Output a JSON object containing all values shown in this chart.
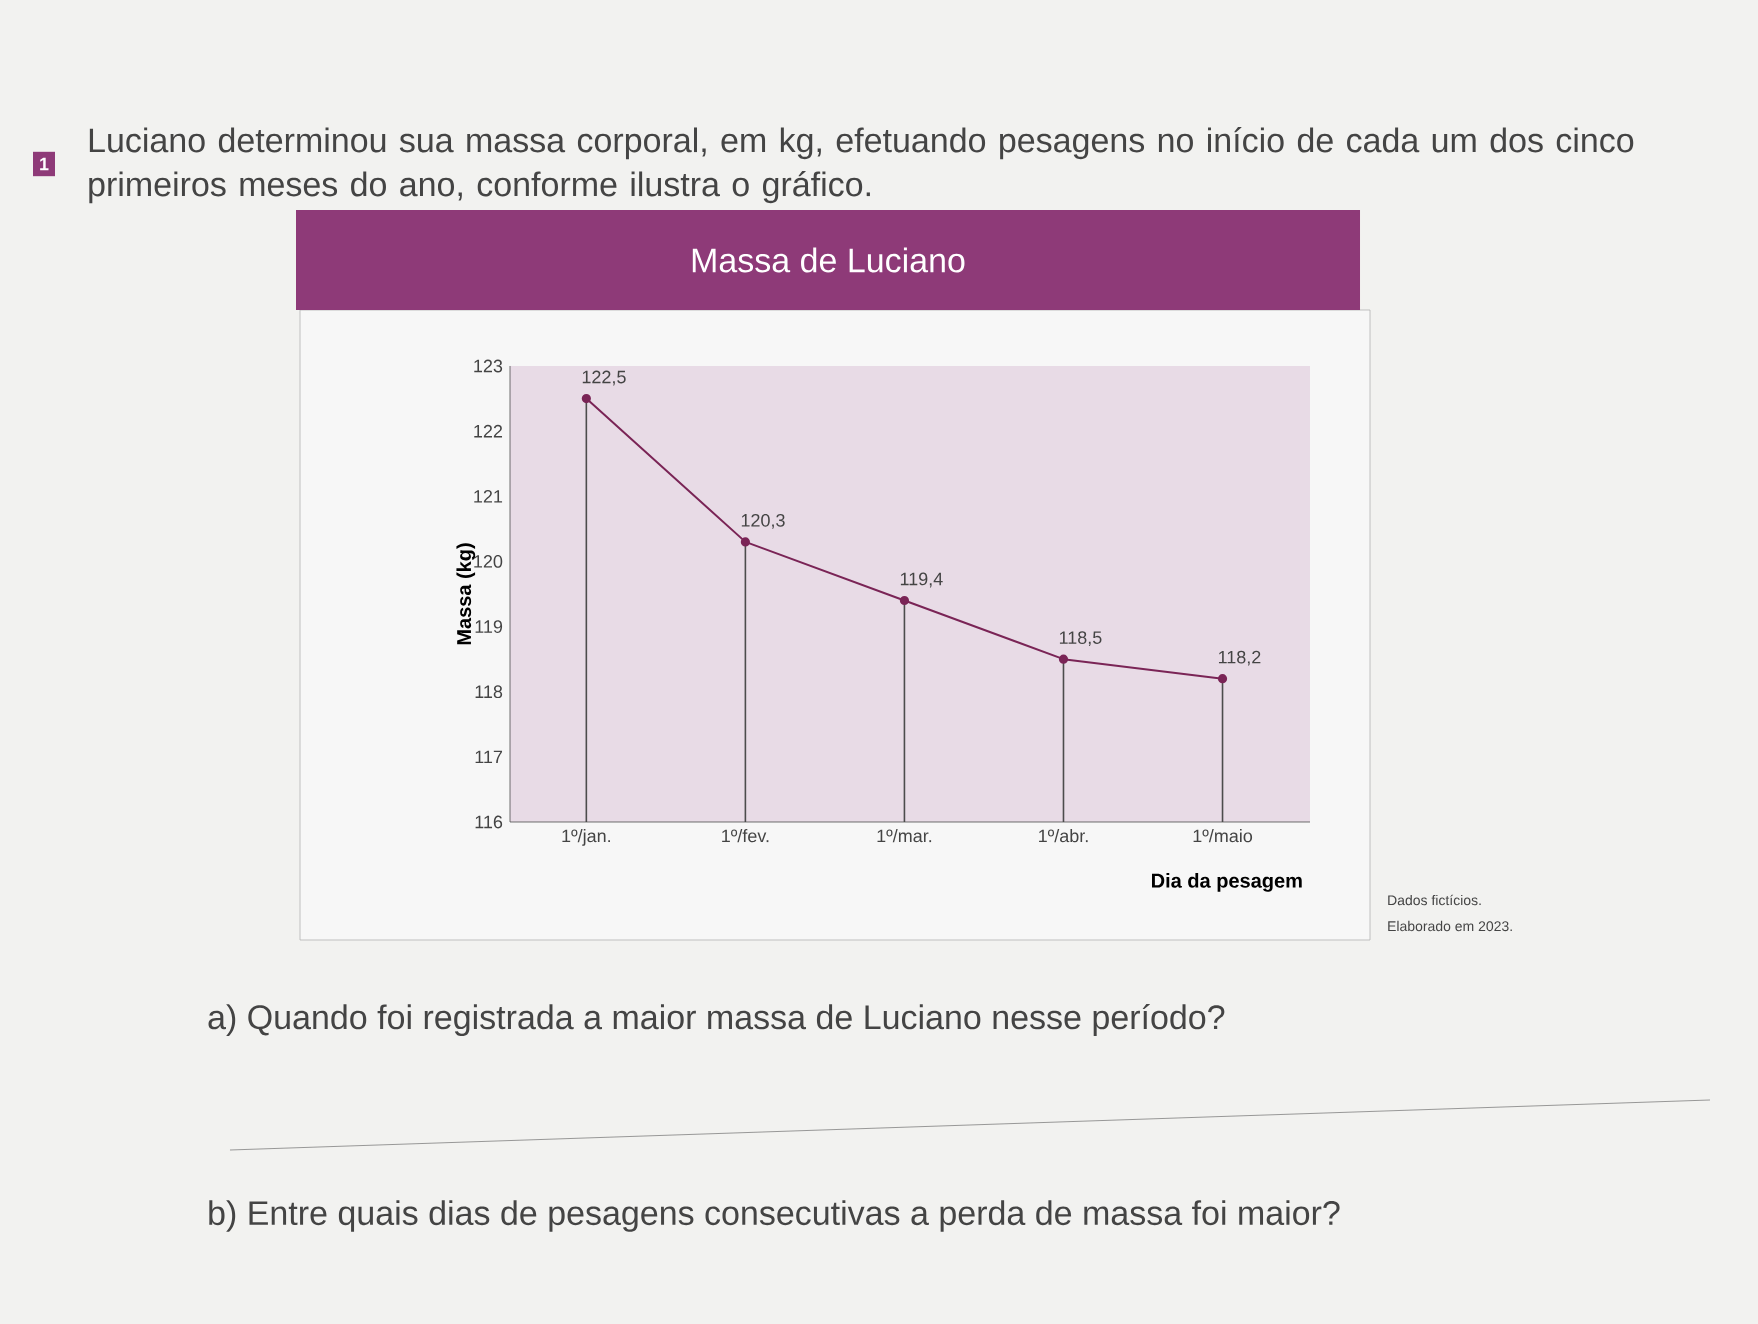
{
  "chart_data": {
    "type": "line",
    "title": "Massa de Luciano",
    "subtitle": "Luciano determinou sua massa corporal, em kg, efetuando pesagens no início de cada um dos cinco primeiros meses do ano, conforme ilustra o gráfico.",
    "xlabel": "Dia da pesagem",
    "ylabel": "Massa (kg)",
    "categories": [
      "1º/jan.",
      "1º/fev.",
      "1º/mar.",
      "1º/abr.",
      "1º/maio"
    ],
    "values": [
      122.5,
      120.3,
      119.4,
      118.5,
      118.2
    ],
    "color": "#7a2456",
    "ylim": [
      116,
      123
    ],
    "yticks": [
      116,
      117,
      118,
      119,
      120,
      121,
      122,
      123
    ],
    "value_labels": [
      "122,5",
      "120,3",
      "119,4",
      "118,5",
      "118,2"
    ],
    "marker": "circle",
    "annotations": [
      "1",
      "Dados fictícios.",
      "Elaborado em 2023.",
      "a) Quando foi registrada a maior massa de Luciano nesse período?",
      "b) Entre quais dias de pesagens consecutivas a perda de massa foi maior?"
    ]
  }
}
